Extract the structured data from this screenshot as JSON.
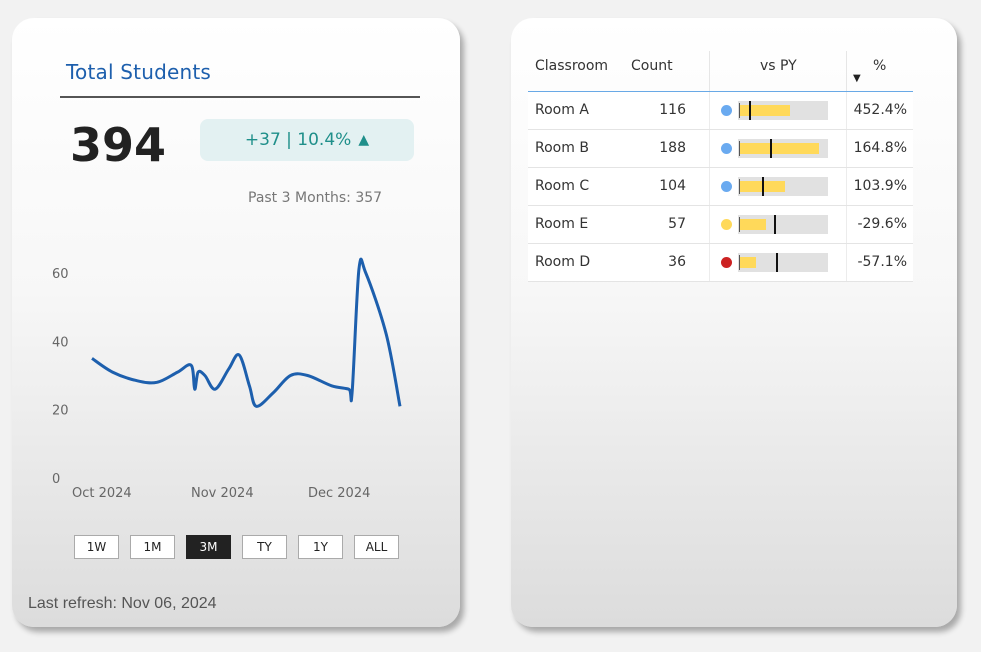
{
  "kpi": {
    "title": "Total Students",
    "value": "394",
    "change_text": "+37 | 10.4%",
    "change_arrow": "▲",
    "past_text": "Past 3 Months: 357"
  },
  "chart_data": {
    "type": "line",
    "title": "",
    "xlabel": "",
    "ylabel": "",
    "ylim": [
      0,
      60
    ],
    "yticks": [
      "0",
      "20",
      "40",
      "60"
    ],
    "xticks": [
      "Oct 2024",
      "Nov 2024",
      "Dec 2024"
    ],
    "series": [
      {
        "values": [
          [
            0,
            35
          ],
          [
            6,
            31
          ],
          [
            13,
            28.5
          ],
          [
            19,
            28
          ],
          [
            25,
            31
          ],
          [
            29,
            33
          ],
          [
            30,
            26
          ],
          [
            31,
            31
          ],
          [
            33,
            30
          ],
          [
            36,
            26
          ],
          [
            40,
            32
          ],
          [
            43,
            36
          ],
          [
            46,
            27
          ],
          [
            48,
            21
          ],
          [
            53,
            25
          ],
          [
            58,
            30
          ],
          [
            63,
            30
          ],
          [
            70,
            27
          ],
          [
            75,
            26
          ],
          [
            76,
            25
          ],
          [
            78,
            61
          ],
          [
            80,
            60
          ],
          [
            86,
            42
          ],
          [
            90,
            21
          ]
        ],
        "color": "#1d5fad"
      }
    ]
  },
  "range_buttons": [
    {
      "label": "1W",
      "active": false
    },
    {
      "label": "1M",
      "active": false
    },
    {
      "label": "3M",
      "active": true
    },
    {
      "label": "TY",
      "active": false
    },
    {
      "label": "1Y",
      "active": false
    },
    {
      "label": "ALL",
      "active": false
    }
  ],
  "refresh_text": "Last refresh: Nov 06, 2024",
  "table": {
    "headers": {
      "room": "Classroom",
      "count": "Count",
      "vs": "vs PY",
      "pct": "%"
    },
    "sort_icon": "sort-descending-icon",
    "rows": [
      {
        "room": "Room A",
        "count": "116",
        "pct": "452.4%",
        "status_color": "#6aaaf0",
        "fill": 0.58,
        "target": 0.1
      },
      {
        "room": "Room B",
        "count": "188",
        "pct": "164.8%",
        "status_color": "#6aaaf0",
        "fill": 0.92,
        "target": 0.35
      },
      {
        "room": "Room C",
        "count": "104",
        "pct": "103.9%",
        "status_color": "#6aaaf0",
        "fill": 0.52,
        "target": 0.25
      },
      {
        "room": "Room E",
        "count": "57",
        "pct": "-29.6%",
        "status_color": "#ffd95a",
        "fill": 0.3,
        "target": 0.4
      },
      {
        "room": "Room D",
        "count": "36",
        "pct": "-57.1%",
        "status_color": "#cc2222",
        "fill": 0.19,
        "target": 0.42
      }
    ]
  }
}
